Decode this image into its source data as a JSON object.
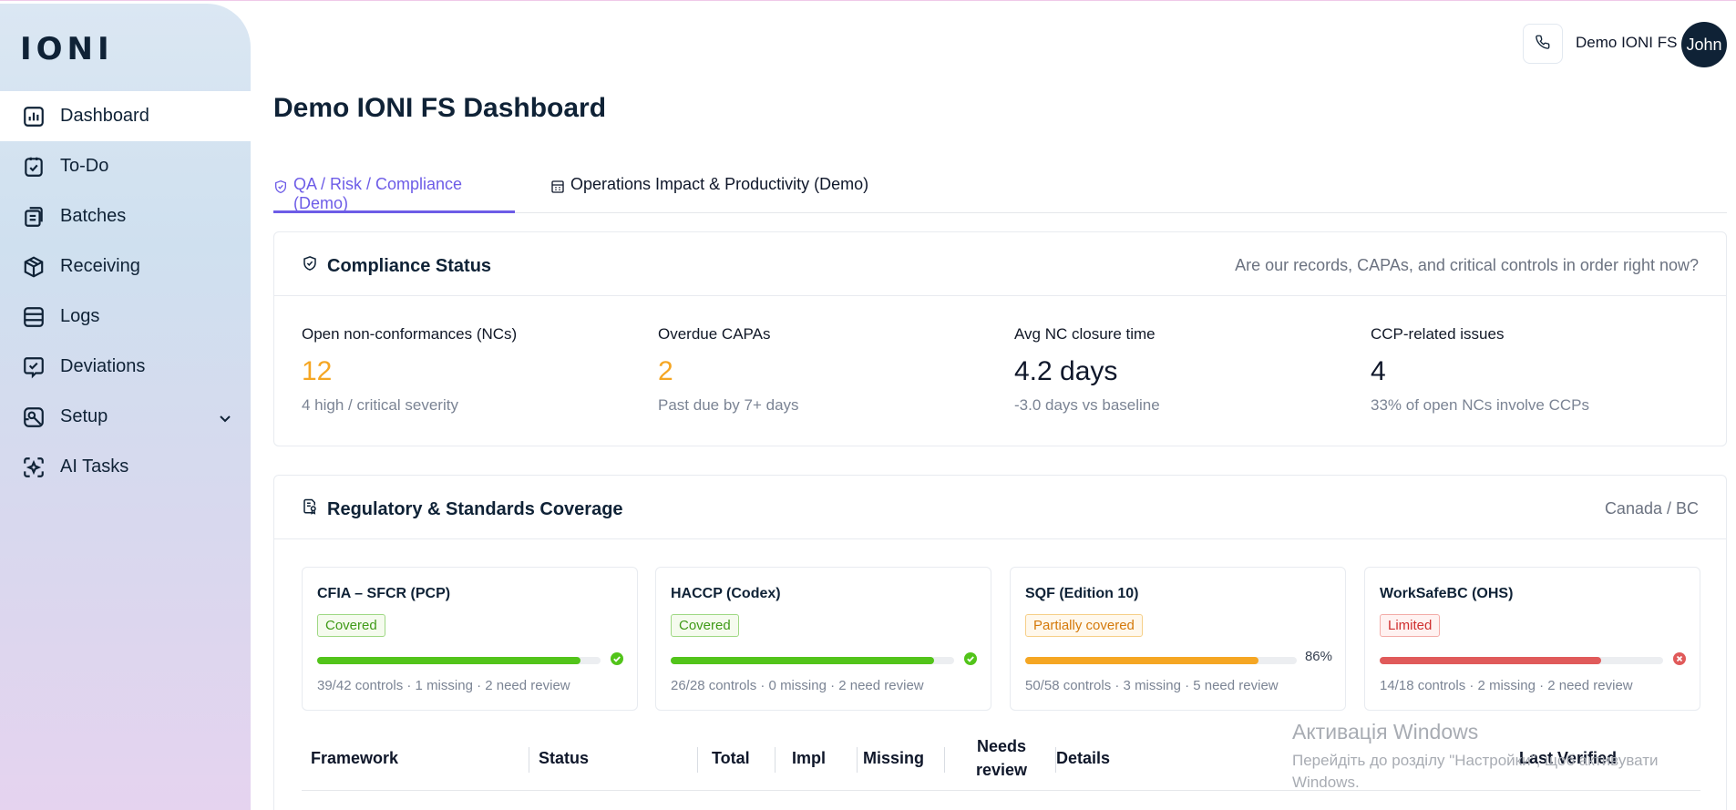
{
  "app": {
    "logo": "IONI"
  },
  "sidebar": {
    "items": [
      {
        "label": "Dashboard",
        "icon": "dashboard-icon"
      },
      {
        "label": "To-Do",
        "icon": "todo-icon"
      },
      {
        "label": "Batches",
        "icon": "batches-icon"
      },
      {
        "label": "Receiving",
        "icon": "package-icon"
      },
      {
        "label": "Logs",
        "icon": "database-icon"
      },
      {
        "label": "Deviations",
        "icon": "deviation-icon"
      },
      {
        "label": "Setup",
        "icon": "setup-icon"
      },
      {
        "label": "AI Tasks",
        "icon": "ai-icon"
      }
    ]
  },
  "header": {
    "user_name": "Demo IONI FS",
    "avatar_text": "John",
    "phone_icon": "phone-icon"
  },
  "page": {
    "title": "Demo IONI FS Dashboard"
  },
  "tabs": [
    {
      "label": "QA / Risk / Compliance (Demo)",
      "icon": "shield-check-icon"
    },
    {
      "label": "Operations Impact & Productivity (Demo)",
      "icon": "building-icon"
    }
  ],
  "compliance": {
    "title": "Compliance Status",
    "subtitle": "Are our records, CAPAs, and critical controls in order right now?",
    "metrics": [
      {
        "label": "Open non-conformances (NCs)",
        "value": "12",
        "note": "4 high / critical severity",
        "color": "#f5a623"
      },
      {
        "label": "Overdue CAPAs",
        "value": "2",
        "note": "Past due by 7+ days",
        "color": "#f5a623"
      },
      {
        "label": "Avg NC closure time",
        "value": "4.2 days",
        "note": "-3.0 days vs baseline",
        "color": "#0f172a"
      },
      {
        "label": "CCP-related issues",
        "value": "4",
        "note": "33% of open NCs involve CCPs",
        "color": "#0f172a"
      }
    ]
  },
  "coverage": {
    "title": "Regulatory & Standards Coverage",
    "region": "Canada / BC",
    "frameworks": [
      {
        "name": "CFIA – SFCR (PCP)",
        "status": "Covered",
        "tone": "green",
        "progress": 0.929,
        "bar_color": "#52c41a",
        "end": "check",
        "detail": "39/42 controls · 1 missing · 2 need review"
      },
      {
        "name": "HACCP (Codex)",
        "status": "Covered",
        "tone": "green",
        "progress": 0.929,
        "bar_color": "#52c41a",
        "end": "check",
        "detail": "26/28 controls · 0 missing · 2 need review"
      },
      {
        "name": "SQF (Edition 10)",
        "status": "Partially covered",
        "tone": "orange",
        "progress": 0.86,
        "bar_color": "#f5a623",
        "end": "86%",
        "detail": "50/58 controls · 3 missing · 5 need review"
      },
      {
        "name": "WorkSafeBC (OHS)",
        "status": "Limited",
        "tone": "red",
        "progress": 0.78,
        "bar_color": "#e05a5a",
        "end": "cross",
        "detail": "14/18 controls · 2 missing · 2 need review"
      }
    ],
    "table_headers": [
      "Framework",
      "Status",
      "Total",
      "Impl",
      "Missing",
      "Needs review",
      "Details",
      "Last Verified"
    ]
  },
  "watermark": {
    "line1": "Активація Windows",
    "line2": "Перейдіть до розділу \"Настройки\", щоб активувати Windows."
  }
}
